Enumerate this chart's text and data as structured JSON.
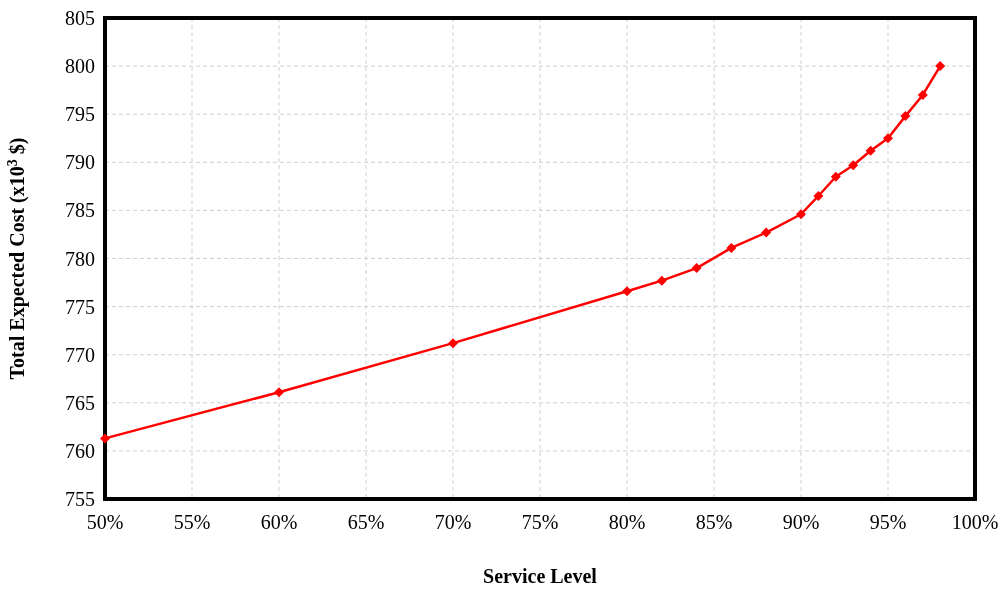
{
  "chart_data": {
    "type": "line",
    "xlabel": "Service Level",
    "ylabel": "Total Expected Cost (x10$^{3}$ $)",
    "x": [
      50,
      60,
      70,
      80,
      82,
      84,
      86,
      88,
      90,
      91,
      92,
      93,
      94,
      95,
      96,
      97,
      98
    ],
    "series": [
      {
        "color": "#ff0000",
        "values": [
          761.3,
          766.1,
          771.2,
          776.6,
          777.7,
          779.0,
          781.1,
          782.7,
          784.6,
          786.5,
          788.5,
          789.7,
          791.2,
          792.5,
          794.8,
          797.0,
          800.0
        ]
      }
    ],
    "xlim": [
      50,
      100
    ],
    "xticks": [
      {
        "value": 50,
        "label": "50%"
      },
      {
        "value": 55,
        "label": "55%"
      },
      {
        "value": 60,
        "label": "60%"
      },
      {
        "value": 65,
        "label": "65%"
      },
      {
        "value": 70,
        "label": "70%"
      },
      {
        "value": 75,
        "label": "75%"
      },
      {
        "value": 80,
        "label": "80%"
      },
      {
        "value": 85,
        "label": "85%"
      },
      {
        "value": 90,
        "label": "90%"
      },
      {
        "value": 95,
        "label": "95%"
      },
      {
        "value": 100,
        "label": "100%"
      }
    ],
    "ylim": [
      755,
      805
    ],
    "yticks": [
      755,
      760,
      765,
      770,
      775,
      780,
      785,
      790,
      795,
      800,
      805
    ],
    "grid": true,
    "marker": "diamond",
    "line_style": "solid"
  }
}
